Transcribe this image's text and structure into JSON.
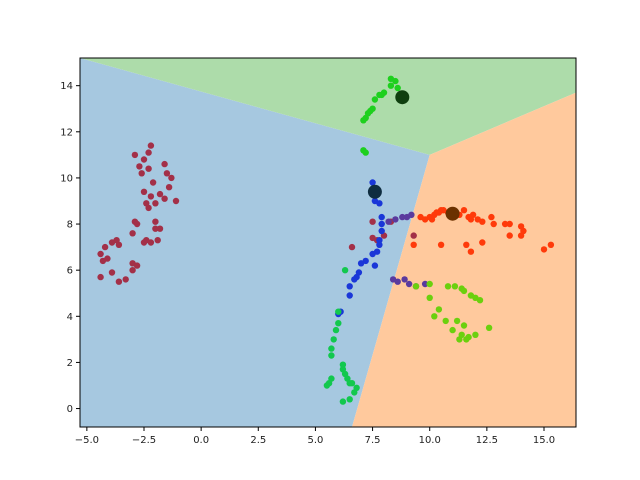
{
  "chart_data": {
    "type": "scatter",
    "title": "",
    "xlabel": "",
    "ylabel": "",
    "xlim": [
      -5.3,
      16.4
    ],
    "ylim": [
      -0.8,
      15.2
    ],
    "xticks": [
      -5.0,
      -2.5,
      0.0,
      2.5,
      5.0,
      7.5,
      10.0,
      12.5,
      15.0
    ],
    "xtick_labels": [
      "−5.0",
      "−2.5",
      "0.0",
      "2.5",
      "5.0",
      "7.5",
      "10.0",
      "12.5",
      "15.0"
    ],
    "yticks": [
      0,
      2,
      4,
      6,
      8,
      10,
      12,
      14
    ],
    "ytick_labels": [
      "0",
      "2",
      "4",
      "6",
      "8",
      "10",
      "12",
      "14"
    ],
    "grid": false,
    "decision_regions": {
      "junction": [
        10.0,
        11.0
      ],
      "boundaries": [
        {
          "between": [
            "blue-region",
            "green-region"
          ],
          "to": [
            -5.3,
            15.2
          ]
        },
        {
          "between": [
            "green-region",
            "orange-region"
          ],
          "to": [
            16.4,
            13.7
          ]
        },
        {
          "between": [
            "blue-region",
            "orange-region"
          ],
          "to": [
            6.6,
            -0.8
          ]
        }
      ],
      "colors": {
        "blue-region": "#a6c8e0",
        "green-region": "#addcaa",
        "orange-region": "#ffc99d"
      }
    },
    "centroids": [
      {
        "x": 8.8,
        "y": 13.5,
        "color": "#0f3f0f"
      },
      {
        "x": 7.6,
        "y": 9.4,
        "color": "#0f2d40"
      },
      {
        "x": 11.0,
        "y": 8.45,
        "color": "#6b3100"
      }
    ],
    "series": [
      {
        "color": "#a33048",
        "points": [
          [
            -2.2,
            11.4
          ],
          [
            -2.3,
            11.1
          ],
          [
            -2.9,
            11.0
          ],
          [
            -2.5,
            10.8
          ],
          [
            -1.6,
            10.6
          ],
          [
            -2.7,
            10.5
          ],
          [
            -2.3,
            10.4
          ],
          [
            -1.5,
            10.2
          ],
          [
            -2.6,
            10.2
          ],
          [
            -1.3,
            10.0
          ],
          [
            -2.1,
            9.8
          ],
          [
            -1.4,
            9.6
          ],
          [
            -2.5,
            9.4
          ],
          [
            -1.8,
            9.3
          ],
          [
            -2.2,
            9.2
          ],
          [
            -1.6,
            9.1
          ],
          [
            -1.1,
            9.0
          ],
          [
            -2.4,
            8.9
          ],
          [
            -2.0,
            8.9
          ],
          [
            -2.3,
            8.7
          ],
          [
            -2.9,
            8.1
          ],
          [
            -2.8,
            8.0
          ],
          [
            -2.0,
            8.1
          ],
          [
            -2.0,
            7.8
          ],
          [
            -1.8,
            7.8
          ],
          [
            -3.0,
            7.6
          ],
          [
            -2.4,
            7.3
          ],
          [
            -2.2,
            7.2
          ],
          [
            -1.9,
            7.3
          ],
          [
            -3.7,
            7.3
          ],
          [
            -3.9,
            7.2
          ],
          [
            -4.2,
            7.0
          ],
          [
            -3.6,
            7.1
          ],
          [
            -2.5,
            7.2
          ],
          [
            -4.4,
            6.7
          ],
          [
            -4.1,
            6.5
          ],
          [
            -4.3,
            6.4
          ],
          [
            -3.0,
            6.3
          ],
          [
            -2.8,
            6.2
          ],
          [
            -3.0,
            6.0
          ],
          [
            -3.9,
            5.9
          ],
          [
            -4.4,
            5.7
          ],
          [
            -3.3,
            5.6
          ],
          [
            -3.6,
            5.5
          ],
          [
            6.6,
            7.0
          ],
          [
            7.5,
            7.4
          ],
          [
            7.7,
            7.3
          ],
          [
            8.0,
            7.5
          ],
          [
            9.3,
            7.5
          ],
          [
            7.5,
            8.1
          ],
          [
            8.3,
            8.1
          ]
        ]
      },
      {
        "color": "#5a3a9e",
        "points": [
          [
            8.2,
            8.1
          ],
          [
            8.5,
            8.2
          ],
          [
            8.8,
            8.3
          ],
          [
            9.0,
            8.3
          ],
          [
            9.2,
            8.4
          ],
          [
            8.4,
            5.6
          ],
          [
            8.6,
            5.5
          ],
          [
            8.9,
            5.6
          ],
          [
            9.1,
            5.4
          ],
          [
            9.4,
            5.3
          ],
          [
            9.8,
            5.4
          ]
        ]
      },
      {
        "color": "#1a37d8",
        "points": [
          [
            7.5,
            9.8
          ],
          [
            7.6,
            9.0
          ],
          [
            7.8,
            8.9
          ],
          [
            7.9,
            8.3
          ],
          [
            7.9,
            8.0
          ],
          [
            7.9,
            7.7
          ],
          [
            7.8,
            7.3
          ],
          [
            7.8,
            7.1
          ],
          [
            7.7,
            6.8
          ],
          [
            7.5,
            6.7
          ],
          [
            7.6,
            6.2
          ],
          [
            7.2,
            6.4
          ],
          [
            7.0,
            6.3
          ],
          [
            6.9,
            5.9
          ],
          [
            6.8,
            5.7
          ],
          [
            6.7,
            5.6
          ],
          [
            6.5,
            5.3
          ],
          [
            6.5,
            4.9
          ],
          [
            6.1,
            4.2
          ],
          [
            6.0,
            4.1
          ]
        ]
      },
      {
        "color": "#1ed01e",
        "points": [
          [
            8.3,
            14.3
          ],
          [
            8.5,
            14.2
          ],
          [
            8.3,
            14.0
          ],
          [
            8.6,
            13.9
          ],
          [
            8.0,
            13.7
          ],
          [
            7.8,
            13.6
          ],
          [
            7.9,
            13.6
          ],
          [
            7.6,
            13.4
          ],
          [
            7.5,
            13.0
          ],
          [
            7.4,
            12.9
          ],
          [
            7.3,
            12.8
          ],
          [
            7.2,
            12.6
          ],
          [
            7.1,
            12.5
          ],
          [
            7.1,
            11.2
          ],
          [
            7.2,
            11.1
          ]
        ]
      },
      {
        "color": "#12c84e",
        "points": [
          [
            6.3,
            6.0
          ],
          [
            6.0,
            4.2
          ],
          [
            6.0,
            3.7
          ],
          [
            5.9,
            3.4
          ],
          [
            5.8,
            3.0
          ],
          [
            5.7,
            2.6
          ],
          [
            5.7,
            2.3
          ],
          [
            6.2,
            1.9
          ],
          [
            6.2,
            1.7
          ],
          [
            6.3,
            1.5
          ],
          [
            6.4,
            1.3
          ],
          [
            6.5,
            1.1
          ],
          [
            5.6,
            1.1
          ],
          [
            5.5,
            1.0
          ],
          [
            5.7,
            1.3
          ],
          [
            6.8,
            0.9
          ],
          [
            6.7,
            0.7
          ],
          [
            6.5,
            0.4
          ],
          [
            6.2,
            0.3
          ],
          [
            6.6,
            1.1
          ]
        ]
      },
      {
        "color": "#ff3a0a",
        "points": [
          [
            10.3,
            8.5
          ],
          [
            10.2,
            8.4
          ],
          [
            10.0,
            8.3
          ],
          [
            9.8,
            8.2
          ],
          [
            10.1,
            8.2
          ],
          [
            10.4,
            8.5
          ],
          [
            10.5,
            8.6
          ],
          [
            10.6,
            8.6
          ],
          [
            10.8,
            8.5
          ],
          [
            11.3,
            8.4
          ],
          [
            11.5,
            8.6
          ],
          [
            11.7,
            8.3
          ],
          [
            11.8,
            8.2
          ],
          [
            11.9,
            8.4
          ],
          [
            12.1,
            8.2
          ],
          [
            12.3,
            8.1
          ],
          [
            12.7,
            8.3
          ],
          [
            12.8,
            8.0
          ],
          [
            13.3,
            8.0
          ],
          [
            13.5,
            8.0
          ],
          [
            14.0,
            7.9
          ],
          [
            14.1,
            7.7
          ],
          [
            14.0,
            7.5
          ],
          [
            13.5,
            7.5
          ],
          [
            12.3,
            7.2
          ],
          [
            11.6,
            7.1
          ],
          [
            10.5,
            7.1
          ],
          [
            9.3,
            7.1
          ],
          [
            11.8,
            6.8
          ],
          [
            15.0,
            6.9
          ],
          [
            15.3,
            7.1
          ],
          [
            9.6,
            8.3
          ]
        ]
      },
      {
        "color": "#6bd00e",
        "points": [
          [
            9.4,
            5.3
          ],
          [
            10.0,
            5.4
          ],
          [
            10.8,
            5.3
          ],
          [
            11.1,
            5.3
          ],
          [
            11.4,
            5.2
          ],
          [
            11.5,
            5.1
          ],
          [
            11.8,
            4.9
          ],
          [
            12.0,
            4.8
          ],
          [
            12.2,
            4.7
          ],
          [
            10.0,
            4.8
          ],
          [
            10.4,
            4.3
          ],
          [
            10.2,
            4.0
          ],
          [
            10.7,
            3.8
          ],
          [
            11.2,
            3.8
          ],
          [
            11.5,
            3.6
          ],
          [
            11.0,
            3.4
          ],
          [
            11.4,
            3.2
          ],
          [
            11.7,
            3.1
          ],
          [
            12.0,
            3.2
          ],
          [
            11.6,
            3.0
          ],
          [
            11.3,
            3.0
          ],
          [
            12.6,
            3.5
          ]
        ]
      }
    ]
  }
}
